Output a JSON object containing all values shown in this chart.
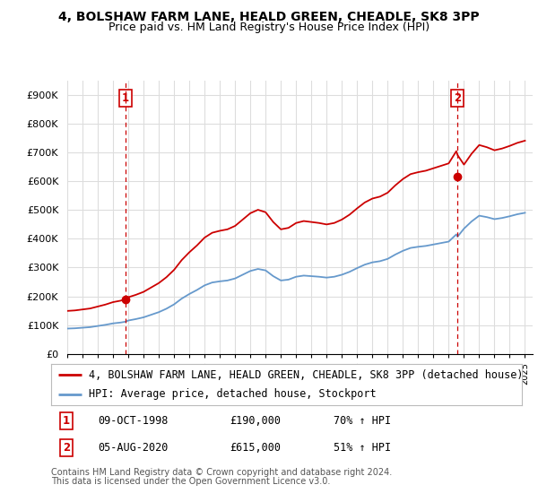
{
  "title": "4, BOLSHAW FARM LANE, HEALD GREEN, CHEADLE, SK8 3PP",
  "subtitle": "Price paid vs. HM Land Registry's House Price Index (HPI)",
  "sale1_date_str": "09-OCT-1998",
  "sale1_price": 190000,
  "sale1_hpi_pct": "70% ↑ HPI",
  "sale2_date_str": "05-AUG-2020",
  "sale2_price": 615000,
  "sale2_hpi_pct": "51% ↑ HPI",
  "legend_red": "4, BOLSHAW FARM LANE, HEALD GREEN, CHEADLE, SK8 3PP (detached house)",
  "legend_blue": "HPI: Average price, detached house, Stockport",
  "footnote1": "Contains HM Land Registry data © Crown copyright and database right 2024.",
  "footnote2": "This data is licensed under the Open Government Licence v3.0.",
  "ylabel_ticks": [
    "£0",
    "£100K",
    "£200K",
    "£300K",
    "£400K",
    "£500K",
    "£600K",
    "£700K",
    "£800K",
    "£900K"
  ],
  "ytick_vals": [
    0,
    100000,
    200000,
    300000,
    400000,
    500000,
    600000,
    700000,
    800000,
    900000
  ],
  "ymax": 950000,
  "red_color": "#cc0000",
  "blue_color": "#6699cc",
  "sale_dot_color": "#cc0000",
  "vline_color": "#cc0000",
  "grid_color": "#dddddd",
  "bg_color": "#ffffff",
  "title_fontsize": 10,
  "subtitle_fontsize": 9,
  "tick_fontsize": 8,
  "legend_fontsize": 8.5,
  "annotation_fontsize": 8.5
}
